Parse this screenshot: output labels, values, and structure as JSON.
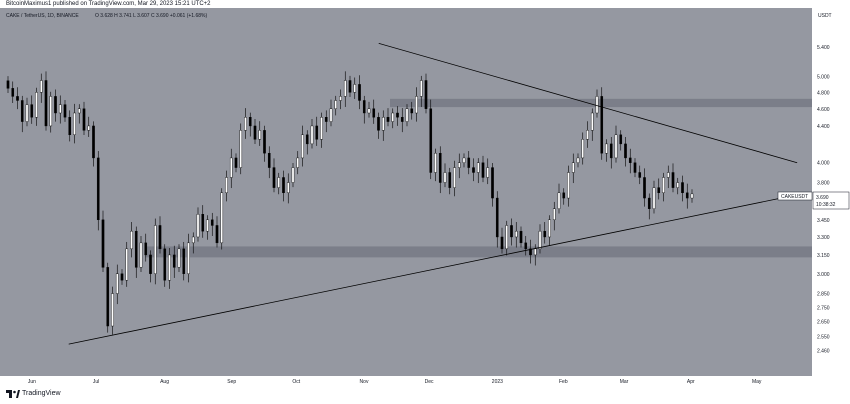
{
  "header": {
    "publisher": "BitcoinMaximus1 published on TradingView.com, Mar 29, 2023 15:21 UTC+2"
  },
  "footer": {
    "brand": "TradingView"
  },
  "colors": {
    "panel_bg": "#9598a1",
    "axis_bg": "#ffffff",
    "candle": "#000000",
    "trendline": "#000000",
    "zone": "#787b86",
    "text": "#131722"
  },
  "chart_data": {
    "type": "candlestick",
    "symbol_legend": "CAKE / TetherUS, 1D, BINANCE",
    "ohlc_legend": "O 3.628  H 3.741  L 3.607  C 3.690  +0.061 (+1.68%)",
    "currency": "USDT",
    "price_label": {
      "symbol": "CAKEUSDT",
      "price": "3.690",
      "countdown": "10:38:32"
    },
    "y_axis": {
      "scale": "log",
      "range": [
        2.35,
        5.85
      ],
      "ticks": [
        "5.400",
        "5.000",
        "4.800",
        "4.600",
        "4.400",
        "4.000",
        "3.800",
        "3.450",
        "3.300",
        "3.150",
        "3.000",
        "2.850",
        "2.750",
        "2.650",
        "2.550",
        "2.460"
      ]
    },
    "x_axis": {
      "labels": [
        "Jun",
        "Jul",
        "Aug",
        "Sep",
        "Oct",
        "Nov",
        "Dec",
        "2023",
        "Feb",
        "Mar",
        "Apr",
        "May"
      ]
    },
    "closes": [
      4.85,
      4.75,
      4.7,
      4.45,
      4.65,
      4.5,
      4.8,
      4.95,
      4.4,
      4.75,
      4.55,
      4.65,
      4.5,
      4.3,
      4.55,
      4.6,
      4.35,
      4.4,
      4.05,
      3.45,
      3.05,
      2.62,
      2.85,
      3.0,
      2.95,
      3.2,
      3.35,
      3.05,
      3.25,
      3.15,
      3.0,
      3.4,
      3.2,
      2.95,
      3.15,
      3.05,
      3.2,
      3.0,
      3.25,
      3.3,
      3.5,
      3.35,
      3.45,
      3.4,
      3.25,
      3.7,
      3.85,
      4.05,
      3.95,
      4.35,
      4.5,
      4.4,
      4.25,
      4.35,
      4.1,
      3.95,
      3.75,
      3.85,
      3.7,
      3.8,
      3.95,
      4.05,
      4.3,
      4.2,
      4.4,
      4.25,
      4.5,
      4.45,
      4.6,
      4.7,
      4.75,
      4.95,
      4.8,
      4.9,
      4.7,
      4.55,
      4.6,
      4.5,
      4.35,
      4.5,
      4.45,
      4.55,
      4.5,
      4.45,
      4.6,
      4.55,
      4.75,
      4.95,
      4.6,
      3.9,
      4.1,
      3.8,
      3.9,
      3.75,
      3.95,
      4.0,
      4.05,
      3.95,
      3.9,
      4.0,
      3.85,
      3.95,
      3.65,
      3.3,
      3.2,
      3.4,
      3.3,
      3.35,
      3.25,
      3.2,
      3.15,
      3.2,
      3.35,
      3.3,
      3.45,
      3.55,
      3.7,
      3.65,
      3.9,
      4.0,
      4.05,
      4.25,
      4.35,
      4.55,
      4.75,
      4.1,
      4.2,
      4.05,
      4.3,
      4.2,
      4.05,
      4.0,
      3.9,
      3.85,
      3.65,
      3.55,
      3.75,
      3.7,
      3.85,
      3.9,
      3.75,
      3.8,
      3.7,
      3.65,
      3.69
    ],
    "trendlines": [
      {
        "name": "descending resistance",
        "from": {
          "date": "Nov 8, 2022",
          "price": 5.45
        },
        "to": {
          "date": "May 20, 2023",
          "price": 4.0
        }
      },
      {
        "name": "ascending support",
        "from": {
          "date": "Jun 18, 2022",
          "price": 2.5
        },
        "to": {
          "date": "May 15, 2023",
          "price": 3.66
        }
      }
    ],
    "zones": [
      {
        "name": "resistance area",
        "low": 4.62,
        "high": 4.72
      },
      {
        "name": "support area",
        "low": 3.13,
        "high": 3.22
      }
    ]
  }
}
